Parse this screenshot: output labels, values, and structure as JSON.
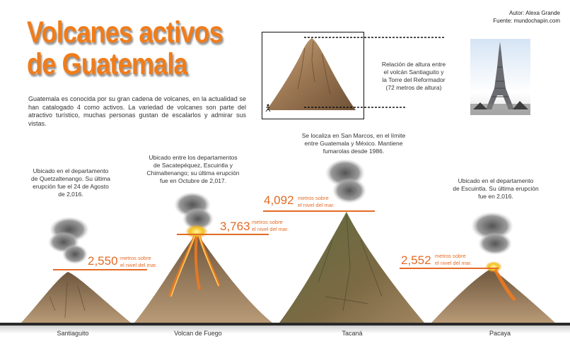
{
  "title": {
    "line1": "Volcanes activos",
    "line2": "de Guatemala"
  },
  "credits": {
    "author": "Autor: Alexa Grande",
    "source": "Fuente: mundochapin.com"
  },
  "intro": "Guatemala es conocida por su gran cadena de volcanes, en la actualidad se han catalogado 4 como activos. La variedad de volcanes son parte del atractivo turístico, muchas personas gustan de escalarlos y admirar sus vistas.",
  "relation": {
    "lines": [
      "Relación de altura entre",
      "el volcán Santiaguito y",
      "la Torre del Reformador",
      "(72 metros de altura)"
    ]
  },
  "height_unit": {
    "line1": "metros sobre",
    "line2": "el nivel del mar."
  },
  "volcanoes": [
    {
      "name": "Santiaguito",
      "height": "2,550",
      "desc": [
        "Ubicado en el departamento",
        "de Quetzaltenango. Su última",
        "erupción fue el 24 de Agosto",
        "de 2,016."
      ]
    },
    {
      "name": "Volcan de Fuego",
      "height": "3,763",
      "desc": [
        "Ubicado entre los departamentos",
        "de Sacatepéquez, Escuintla y",
        "Chimaltenango; su última erupción",
        "fue en Octubre de 2,017."
      ]
    },
    {
      "name": "Tacaná",
      "height": "4,092",
      "desc": [
        "Se localiza en San Marcos, en el límite",
        "entre Guatemala y México. Mantiene",
        "fumarolas desde 1986."
      ]
    },
    {
      "name": "Pacaya",
      "height": "2,552",
      "desc": [
        "Ubicado en el departamento",
        "de Escuintla. Su última erupción",
        "fue en 2,016."
      ]
    }
  ],
  "colors": {
    "accent": "#f07c1a",
    "label": "#e46b25",
    "rock": "#8b6a46",
    "smoke": "#8a8a8a",
    "lava": "#f29a1d"
  },
  "icons": {
    "person": "person-figure-icon"
  }
}
